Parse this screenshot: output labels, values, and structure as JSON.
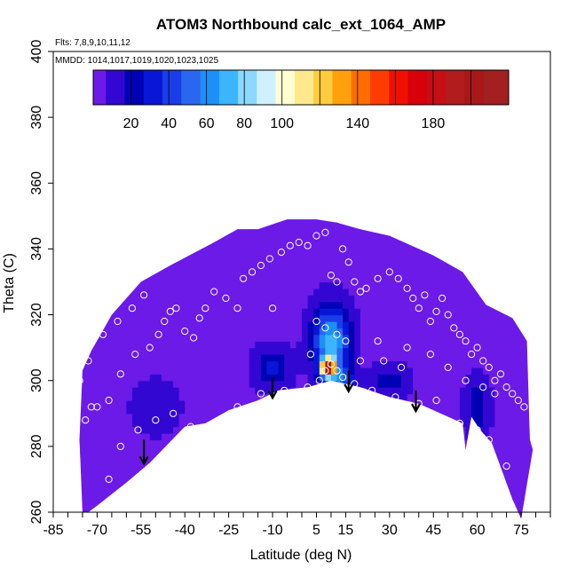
{
  "chart_data": {
    "type": "heatmap",
    "title": "ATOM3 Northbound calc_ext_1064_AMP",
    "flights_note": "Flts: 7,8,9,10,11,12",
    "dates_note": "MMDD: 1014,1017,1019,1020,1023,1025",
    "xlabel": "Latitude (deg N)",
    "ylabel": "Theta (C)",
    "xlim": [
      -85,
      85
    ],
    "ylim": [
      260,
      400
    ],
    "x_tick_labels": [
      -85,
      -70,
      -55,
      -40,
      -25,
      -10,
      5,
      15,
      30,
      45,
      60,
      75
    ],
    "x_minor_step": 5,
    "y_tick_labels": [
      260,
      280,
      300,
      320,
      340,
      360,
      380,
      400
    ],
    "colorbar": {
      "min": 0,
      "max": 220,
      "boundaries": [
        0,
        10,
        20,
        30,
        40,
        50,
        60,
        70,
        80,
        90,
        100,
        110,
        120,
        130,
        140,
        150,
        160,
        170,
        180,
        190,
        200,
        210,
        220
      ],
      "tick_labels": [
        20,
        40,
        60,
        80,
        100,
        140,
        180
      ],
      "colors": [
        "#6c1ae8",
        "#3307d2",
        "#0000b5",
        "#0816d8",
        "#1a3de8",
        "#2a66f0",
        "#1c90f8",
        "#3cb4ff",
        "#8cd8ff",
        "#cff0ff",
        "#ffffd4",
        "#ffe98c",
        "#ffcc40",
        "#ffa10a",
        "#ff6d00",
        "#ff3c00",
        "#f01000",
        "#d8000a",
        "#c50f15",
        "#b21c1c",
        "#a81818",
        "#a22020"
      ]
    },
    "field_notes": "Background amplitude ~5-10 (violet) across the sampled curtain; enhanced values 20-100 (blue/cyan) above the tropics near 5-15N between 295-330 K with a core peaking near 200 at about 10N, 303-306 K; deep blue (~20-30) near the lower boundary around -10N and 55-65N.",
    "arrows_latitude": [
      -54,
      -10,
      16,
      39
    ],
    "arrows_theta_top": [
      282,
      301,
      303,
      297
    ],
    "arrows_theta_bottom": [
      275,
      295,
      297,
      291
    ],
    "lower_boundary": [
      [
        -73,
        260
      ],
      [
        -70,
        262
      ],
      [
        -60,
        269
      ],
      [
        -52,
        275
      ],
      [
        -40,
        286
      ],
      [
        -33,
        287
      ],
      [
        -25,
        291
      ],
      [
        -15,
        294
      ],
      [
        -8,
        297
      ],
      [
        2,
        298
      ],
      [
        10,
        300
      ],
      [
        20,
        298
      ],
      [
        30,
        295
      ],
      [
        40,
        293
      ],
      [
        50,
        289
      ],
      [
        55,
        287
      ],
      [
        56,
        279
      ],
      [
        58,
        289
      ],
      [
        61,
        285
      ],
      [
        65,
        281
      ],
      [
        72,
        264
      ],
      [
        75,
        258
      ]
    ],
    "upper_boundary": [
      [
        -75,
        260
      ],
      [
        -76,
        282
      ],
      [
        -75,
        303
      ],
      [
        -72,
        309
      ],
      [
        -65,
        320
      ],
      [
        -55,
        330
      ],
      [
        -45,
        335
      ],
      [
        -30,
        342
      ],
      [
        -22,
        346
      ],
      [
        -15,
        346
      ],
      [
        -5,
        349
      ],
      [
        5,
        349
      ],
      [
        12,
        348
      ],
      [
        20,
        346
      ],
      [
        30,
        344
      ],
      [
        40,
        340
      ],
      [
        45,
        338
      ],
      [
        55,
        333
      ],
      [
        63,
        323
      ],
      [
        72,
        319
      ],
      [
        77,
        312
      ],
      [
        78,
        282
      ],
      [
        79,
        279
      ],
      [
        75,
        258
      ]
    ],
    "sample_points": [
      [
        -74,
        288
      ],
      [
        -72,
        292
      ],
      [
        -70,
        292
      ],
      [
        -66,
        294
      ],
      [
        -62,
        302
      ],
      [
        -57,
        308
      ],
      [
        -52,
        310
      ],
      [
        -49,
        314
      ],
      [
        -47,
        318
      ],
      [
        -45,
        321
      ],
      [
        -43,
        322
      ],
      [
        -40,
        315
      ],
      [
        -37,
        313
      ],
      [
        -35,
        319
      ],
      [
        -33,
        322
      ],
      [
        -30,
        327
      ],
      [
        -26,
        325
      ],
      [
        -22,
        322
      ],
      [
        -20,
        331
      ],
      [
        -17,
        333
      ],
      [
        -14,
        335
      ],
      [
        -11,
        337
      ],
      [
        -10,
        322
      ],
      [
        -7,
        339
      ],
      [
        -4,
        341
      ],
      [
        -1,
        342
      ],
      [
        2,
        341
      ],
      [
        5,
        344
      ],
      [
        8,
        345
      ],
      [
        10,
        332
      ],
      [
        12,
        330
      ],
      [
        14,
        340
      ],
      [
        16,
        336
      ],
      [
        18,
        330
      ],
      [
        20,
        327
      ],
      [
        22,
        328
      ],
      [
        26,
        331
      ],
      [
        30,
        333
      ],
      [
        33,
        331
      ],
      [
        36,
        328
      ],
      [
        38,
        325
      ],
      [
        40,
        322
      ],
      [
        42,
        326
      ],
      [
        44,
        318
      ],
      [
        46,
        321
      ],
      [
        48,
        325
      ],
      [
        50,
        320
      ],
      [
        52,
        316
      ],
      [
        54,
        314
      ],
      [
        56,
        312
      ],
      [
        58,
        308
      ],
      [
        60,
        310
      ],
      [
        62,
        306
      ],
      [
        64,
        304
      ],
      [
        66,
        300
      ],
      [
        68,
        302
      ],
      [
        70,
        298
      ],
      [
        72,
        296
      ],
      [
        74,
        294
      ],
      [
        76,
        292
      ],
      [
        -62,
        280
      ],
      [
        -56,
        285
      ],
      [
        -50,
        288
      ],
      [
        -44,
        290
      ],
      [
        -38,
        286
      ],
      [
        -30,
        287
      ],
      [
        -22,
        292
      ],
      [
        -14,
        296
      ],
      [
        -6,
        297
      ],
      [
        2,
        298
      ],
      [
        6,
        300
      ],
      [
        8,
        303
      ],
      [
        10,
        305
      ],
      [
        12,
        303
      ],
      [
        14,
        301
      ],
      [
        18,
        299
      ],
      [
        24,
        297
      ],
      [
        32,
        295
      ],
      [
        40,
        293
      ],
      [
        46,
        294
      ],
      [
        52,
        286
      ],
      [
        54,
        287
      ],
      [
        60,
        285
      ],
      [
        64,
        282
      ],
      [
        70,
        274
      ],
      [
        -76,
        300
      ],
      [
        -73,
        306
      ],
      [
        -68,
        314
      ],
      [
        -63,
        318
      ],
      [
        -58,
        322
      ],
      [
        -54,
        326
      ],
      [
        5,
        318
      ],
      [
        8,
        316
      ],
      [
        12,
        314
      ],
      [
        15,
        312
      ],
      [
        3,
        308
      ],
      [
        20,
        306
      ],
      [
        28,
        306
      ],
      [
        34,
        304
      ],
      [
        26,
        312
      ],
      [
        36,
        310
      ],
      [
        44,
        308
      ],
      [
        50,
        304
      ],
      [
        56,
        300
      ],
      [
        62,
        298
      ],
      [
        66,
        296
      ],
      [
        -66,
        270
      ]
    ]
  }
}
